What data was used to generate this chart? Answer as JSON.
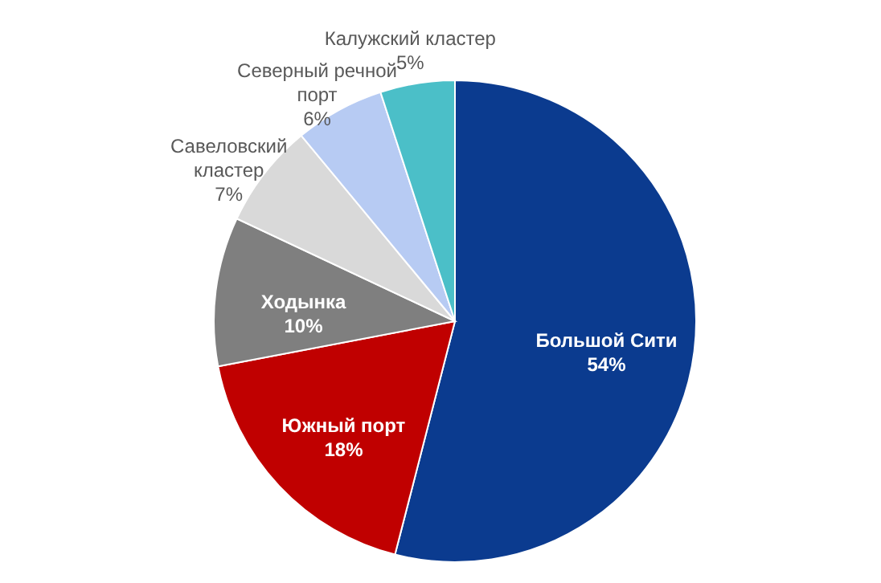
{
  "chart_data": {
    "type": "pie",
    "categories": [
      "Большой Сити",
      "Южный порт",
      "Ходынка",
      "Савеловский кластер",
      "Северный речной порт",
      "Калужский кластер"
    ],
    "values": [
      54,
      18,
      10,
      7,
      6,
      5
    ],
    "value_labels": [
      "54%",
      "18%",
      "10%",
      "7%",
      "6%",
      "5%"
    ],
    "colors": [
      "#0b3b8f",
      "#c00000",
      "#7f7f7f",
      "#d9d9d9",
      "#b7cbf3",
      "#4bbfc8"
    ]
  }
}
